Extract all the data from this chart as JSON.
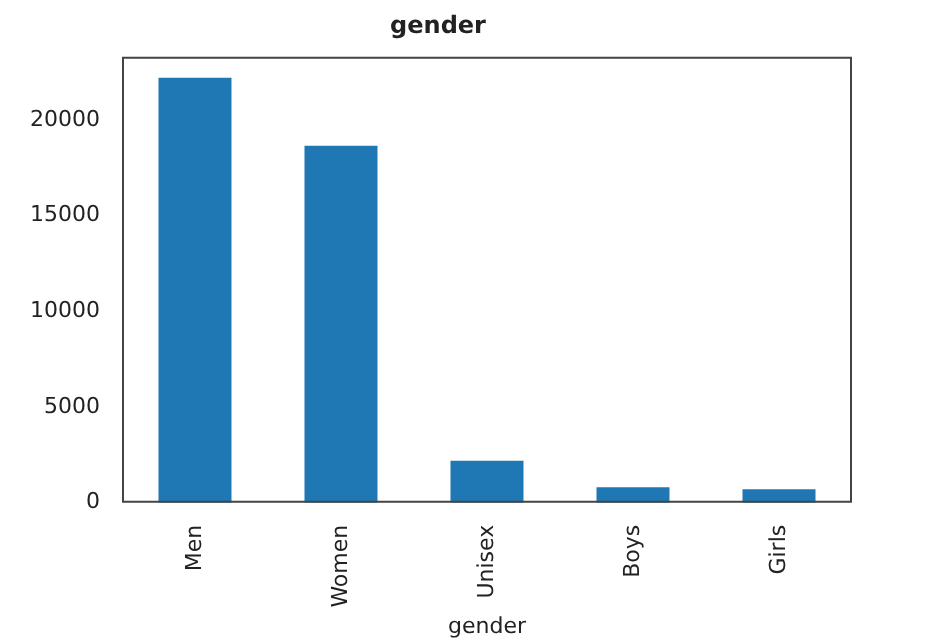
{
  "chart_data": {
    "type": "bar",
    "title": "gender",
    "xlabel": "gender",
    "categories": [
      "Men",
      "Women",
      "Unisex",
      "Boys",
      "Girls"
    ],
    "values": [
      22200,
      18650,
      2200,
      810,
      710
    ],
    "color": "#1f77b4",
    "ylim": [
      0,
      23300
    ],
    "yticks": [
      0,
      5000,
      10000,
      15000,
      20000
    ],
    "grid": false,
    "legend": false
  }
}
